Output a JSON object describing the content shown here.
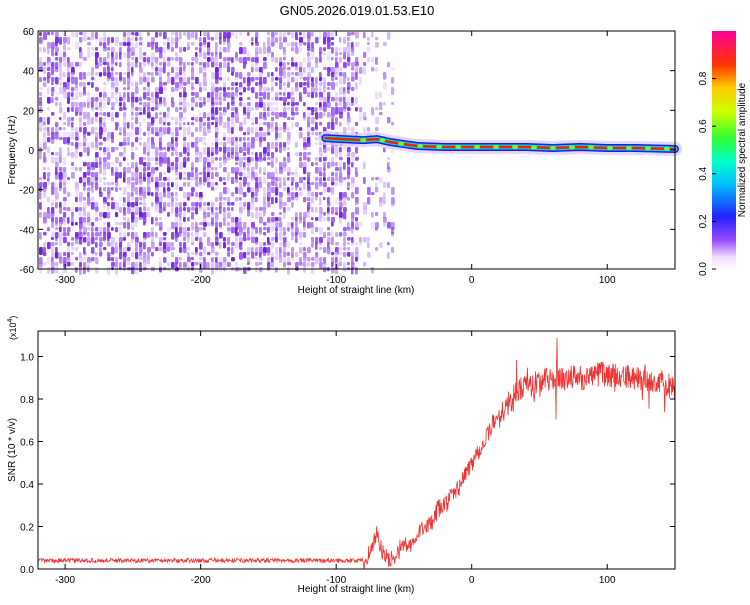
{
  "title": "GN05.2026.019.01.53.E10",
  "chart_data": [
    {
      "type": "heatmap",
      "xlabel": "Height of straight line (km)",
      "ylabel": "Frequency (Hz)",
      "xlim": [
        -320,
        150
      ],
      "ylim": [
        -60,
        60
      ],
      "xticks": [
        -300,
        -200,
        -100,
        0,
        100
      ],
      "xtick_labels": [
        "-300",
        "-200",
        "-100",
        "0",
        "100"
      ],
      "yticks": [
        -60,
        -40,
        -20,
        0,
        20,
        40,
        60
      ],
      "ytick_labels": [
        "-60",
        "-40",
        "-20",
        "0",
        "20",
        "40",
        "60"
      ],
      "colorbar": {
        "label": "Normalized spectral amplitude",
        "range": [
          0,
          1
        ],
        "ticks": [
          0.0,
          0.2,
          0.4,
          0.6,
          0.8
        ],
        "tick_labels": [
          "0.0",
          "0.2",
          "0.4",
          "0.6",
          "0.8"
        ],
        "colormap": "rainbow (white-purple-blue-cyan-green-yellow-red-magenta)"
      },
      "noise_region_km": [
        -320,
        -57
      ],
      "signal_track": {
        "x": [
          -108,
          -95,
          -80,
          -70,
          -60,
          -50,
          -40,
          -20,
          0,
          20,
          40,
          60,
          80,
          100,
          120,
          150
        ],
        "frequency_hz": [
          6,
          5.5,
          5,
          5.5,
          4,
          3,
          2,
          1.5,
          1.5,
          1.5,
          1.5,
          1,
          1.5,
          1,
          1,
          0.5
        ]
      },
      "grid": false
    },
    {
      "type": "line",
      "xlabel": "Height of straight line (km)",
      "ylabel": "SNR (10 * v/v)",
      "multiplier_label": "(x10",
      "multiplier_exp": "4",
      "multiplier_close": ")",
      "xlim": [
        -320,
        150
      ],
      "ylim": [
        0,
        1.12
      ],
      "xticks": [
        -300,
        -200,
        -100,
        0,
        100
      ],
      "xtick_labels": [
        "-300",
        "-200",
        "-100",
        "0",
        "100"
      ],
      "yticks": [
        0.0,
        0.2,
        0.4,
        0.6,
        0.8,
        1.0
      ],
      "ytick_labels": [
        "0.0",
        "0.2",
        "0.4",
        "0.6",
        "0.8",
        "1.0"
      ],
      "series": [
        {
          "color": "#ee3333",
          "x": [
            -320,
            -250,
            -200,
            -150,
            -100,
            -80,
            -75,
            -70,
            -65,
            -60,
            -55,
            -50,
            -45,
            -40,
            -35,
            -30,
            -25,
            -20,
            -15,
            -10,
            -5,
            0,
            5,
            10,
            15,
            20,
            25,
            30,
            35,
            40,
            50,
            60,
            70,
            80,
            90,
            100,
            110,
            120,
            130,
            140,
            150
          ],
          "y": [
            0.04,
            0.04,
            0.04,
            0.04,
            0.04,
            0.04,
            0.08,
            0.17,
            0.06,
            0.04,
            0.08,
            0.12,
            0.1,
            0.15,
            0.22,
            0.2,
            0.28,
            0.3,
            0.34,
            0.38,
            0.44,
            0.5,
            0.56,
            0.6,
            0.68,
            0.72,
            0.76,
            0.8,
            0.84,
            0.86,
            0.88,
            0.9,
            0.9,
            0.9,
            0.91,
            0.92,
            0.9,
            0.9,
            0.89,
            0.88,
            0.85
          ]
        }
      ],
      "grid": false
    }
  ]
}
